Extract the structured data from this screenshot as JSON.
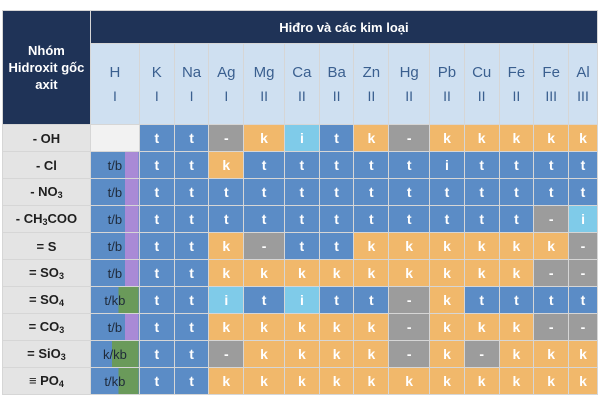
{
  "header": {
    "corner_label": "Nhóm Hidroxit gốc axit",
    "title": "Hiđro và các kim loại"
  },
  "metals": [
    {
      "symbol": "H",
      "valence": "I"
    },
    {
      "symbol": "K",
      "valence": "I"
    },
    {
      "symbol": "Na",
      "valence": "I"
    },
    {
      "symbol": "Ag",
      "valence": "I"
    },
    {
      "symbol": "Mg",
      "valence": "II"
    },
    {
      "symbol": "Ca",
      "valence": "II"
    },
    {
      "symbol": "Ba",
      "valence": "II"
    },
    {
      "symbol": "Zn",
      "valence": "II"
    },
    {
      "symbol": "Hg",
      "valence": "II"
    },
    {
      "symbol": "Pb",
      "valence": "II"
    },
    {
      "symbol": "Cu",
      "valence": "II"
    },
    {
      "symbol": "Fe",
      "valence": "II"
    },
    {
      "symbol": "Fe",
      "valence": "III"
    },
    {
      "symbol": "Al",
      "valence": "III"
    }
  ],
  "rows": [
    {
      "group_prefix": "- OH",
      "group_sub": "",
      "group_suffix": "",
      "h_label": "",
      "h_style": "w",
      "cells": [
        "t",
        "t",
        "-",
        "k",
        "i",
        "t",
        "k",
        "-",
        "k",
        "k",
        "k",
        "k",
        "k"
      ],
      "styles": [
        "b",
        "b",
        "g",
        "k",
        "c",
        "b",
        "k",
        "g",
        "k",
        "k",
        "k",
        "k",
        "k"
      ]
    },
    {
      "group_prefix": "- Cl",
      "group_sub": "",
      "group_suffix": "",
      "h_label": "t/b",
      "h_style": "tb",
      "cells": [
        "t",
        "t",
        "k",
        "t",
        "t",
        "t",
        "t",
        "t",
        "i",
        "t",
        "t",
        "t",
        "t"
      ],
      "styles": [
        "b",
        "b",
        "k",
        "b",
        "b",
        "b",
        "b",
        "b",
        "b",
        "b",
        "b",
        "b",
        "b"
      ]
    },
    {
      "group_prefix": "- NO",
      "group_sub": "3",
      "group_suffix": "",
      "h_label": "t/b",
      "h_style": "tb",
      "cells": [
        "t",
        "t",
        "t",
        "t",
        "t",
        "t",
        "t",
        "t",
        "t",
        "t",
        "t",
        "t",
        "t"
      ],
      "styles": [
        "b",
        "b",
        "b",
        "b",
        "b",
        "b",
        "b",
        "b",
        "b",
        "b",
        "b",
        "b",
        "b"
      ]
    },
    {
      "group_prefix": "- CH",
      "group_sub": "3",
      "group_suffix": "COO",
      "h_label": "t/b",
      "h_style": "tb",
      "cells": [
        "t",
        "t",
        "t",
        "t",
        "t",
        "t",
        "t",
        "t",
        "t",
        "t",
        "t",
        "-",
        "i"
      ],
      "styles": [
        "b",
        "b",
        "b",
        "b",
        "b",
        "b",
        "b",
        "b",
        "b",
        "b",
        "b",
        "g",
        "c"
      ]
    },
    {
      "group_prefix": "= S",
      "group_sub": "",
      "group_suffix": "",
      "h_label": "t/b",
      "h_style": "tb",
      "cells": [
        "t",
        "t",
        "k",
        "-",
        "t",
        "t",
        "k",
        "k",
        "k",
        "k",
        "k",
        "k",
        "-"
      ],
      "styles": [
        "b",
        "b",
        "k",
        "g",
        "b",
        "b",
        "k",
        "k",
        "k",
        "k",
        "k",
        "k",
        "g"
      ]
    },
    {
      "group_prefix": "= SO",
      "group_sub": "3",
      "group_suffix": "",
      "h_label": "t/b",
      "h_style": "tb",
      "cells": [
        "t",
        "t",
        "k",
        "k",
        "k",
        "k",
        "k",
        "k",
        "k",
        "k",
        "k",
        "-",
        "-"
      ],
      "styles": [
        "b",
        "b",
        "k",
        "k",
        "k",
        "k",
        "k",
        "k",
        "k",
        "k",
        "k",
        "g",
        "g"
      ]
    },
    {
      "group_prefix": "= SO",
      "group_sub": "4",
      "group_suffix": "",
      "h_label": "t/kb",
      "h_style": "tkb",
      "cells": [
        "t",
        "t",
        "i",
        "t",
        "i",
        "t",
        "t",
        "-",
        "k",
        "t",
        "t",
        "t",
        "t"
      ],
      "styles": [
        "b",
        "b",
        "c",
        "b",
        "c",
        "b",
        "b",
        "g",
        "k",
        "b",
        "b",
        "b",
        "b"
      ]
    },
    {
      "group_prefix": "= CO",
      "group_sub": "3",
      "group_suffix": "",
      "h_label": "t/b",
      "h_style": "tb",
      "cells": [
        "t",
        "t",
        "k",
        "k",
        "k",
        "k",
        "k",
        "-",
        "k",
        "k",
        "k",
        "-",
        "-"
      ],
      "styles": [
        "b",
        "b",
        "k",
        "k",
        "k",
        "k",
        "k",
        "g",
        "k",
        "k",
        "k",
        "g",
        "g"
      ]
    },
    {
      "group_prefix": "= SiO",
      "group_sub": "3",
      "group_suffix": "",
      "h_label": "k/kb",
      "h_style": "kkb",
      "cells": [
        "t",
        "t",
        "-",
        "k",
        "k",
        "k",
        "k",
        "-",
        "k",
        "-",
        "k",
        "k",
        "k"
      ],
      "styles": [
        "b",
        "b",
        "g",
        "k",
        "k",
        "k",
        "k",
        "g",
        "k",
        "g",
        "k",
        "k",
        "k"
      ]
    },
    {
      "group_prefix": "≡ PO",
      "group_sub": "4",
      "group_suffix": "",
      "h_label": "t/kb",
      "h_style": "tkb",
      "cells": [
        "t",
        "t",
        "k",
        "k",
        "k",
        "k",
        "k",
        "k",
        "k",
        "k",
        "k",
        "k",
        "k"
      ],
      "styles": [
        "b",
        "b",
        "k",
        "k",
        "k",
        "k",
        "k",
        "k",
        "k",
        "k",
        "k",
        "k",
        "k"
      ]
    }
  ]
}
